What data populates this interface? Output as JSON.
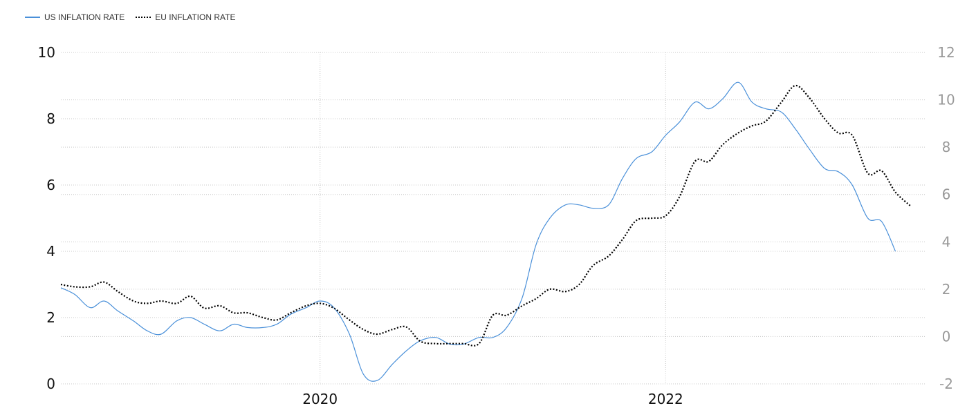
{
  "chart_data": {
    "type": "line",
    "legend": {
      "position": "top-left",
      "items": [
        "US INFLATION RATE",
        "EU INFLATION RATE"
      ]
    },
    "x_ticks": [
      2020,
      2022
    ],
    "x_range": [
      2018.5,
      2023.5
    ],
    "y_left": {
      "ticks": [
        0,
        2,
        4,
        6,
        8,
        10
      ],
      "range": [
        0,
        10
      ]
    },
    "y_right": {
      "ticks": [
        -2,
        0,
        2,
        4,
        6,
        8,
        10,
        12
      ],
      "range": [
        -2,
        12
      ]
    },
    "grid": true,
    "colors": {
      "us": "#4a90d9",
      "eu": "#000000"
    },
    "series": [
      {
        "name": "US INFLATION RATE",
        "axis": "left",
        "points": [
          [
            2018.5,
            2.9
          ],
          [
            2018.58,
            2.7
          ],
          [
            2018.67,
            2.3
          ],
          [
            2018.75,
            2.5
          ],
          [
            2018.83,
            2.2
          ],
          [
            2018.92,
            1.9
          ],
          [
            2019.0,
            1.6
          ],
          [
            2019.08,
            1.5
          ],
          [
            2019.17,
            1.9
          ],
          [
            2019.25,
            2.0
          ],
          [
            2019.33,
            1.8
          ],
          [
            2019.42,
            1.6
          ],
          [
            2019.5,
            1.8
          ],
          [
            2019.58,
            1.7
          ],
          [
            2019.67,
            1.7
          ],
          [
            2019.75,
            1.8
          ],
          [
            2019.83,
            2.1
          ],
          [
            2019.92,
            2.3
          ],
          [
            2020.0,
            2.5
          ],
          [
            2020.08,
            2.3
          ],
          [
            2020.17,
            1.5
          ],
          [
            2020.25,
            0.3
          ],
          [
            2020.33,
            0.1
          ],
          [
            2020.42,
            0.6
          ],
          [
            2020.5,
            1.0
          ],
          [
            2020.58,
            1.3
          ],
          [
            2020.67,
            1.4
          ],
          [
            2020.75,
            1.2
          ],
          [
            2020.83,
            1.2
          ],
          [
            2020.92,
            1.4
          ],
          [
            2021.0,
            1.4
          ],
          [
            2021.08,
            1.7
          ],
          [
            2021.17,
            2.6
          ],
          [
            2021.25,
            4.2
          ],
          [
            2021.33,
            5.0
          ],
          [
            2021.42,
            5.4
          ],
          [
            2021.5,
            5.4
          ],
          [
            2021.58,
            5.3
          ],
          [
            2021.67,
            5.4
          ],
          [
            2021.75,
            6.2
          ],
          [
            2021.83,
            6.8
          ],
          [
            2021.92,
            7.0
          ],
          [
            2022.0,
            7.5
          ],
          [
            2022.08,
            7.9
          ],
          [
            2022.17,
            8.5
          ],
          [
            2022.25,
            8.3
          ],
          [
            2022.33,
            8.6
          ],
          [
            2022.42,
            9.1
          ],
          [
            2022.5,
            8.5
          ],
          [
            2022.58,
            8.3
          ],
          [
            2022.67,
            8.2
          ],
          [
            2022.75,
            7.7
          ],
          [
            2022.83,
            7.1
          ],
          [
            2022.92,
            6.5
          ],
          [
            2023.0,
            6.4
          ],
          [
            2023.08,
            6.0
          ],
          [
            2023.17,
            5.0
          ],
          [
            2023.25,
            4.9
          ],
          [
            2023.33,
            4.0
          ]
        ]
      },
      {
        "name": "EU INFLATION RATE",
        "axis": "right",
        "points": [
          [
            2018.5,
            2.2
          ],
          [
            2018.58,
            2.1
          ],
          [
            2018.67,
            2.1
          ],
          [
            2018.75,
            2.3
          ],
          [
            2018.83,
            1.9
          ],
          [
            2018.92,
            1.5
          ],
          [
            2019.0,
            1.4
          ],
          [
            2019.08,
            1.5
          ],
          [
            2019.17,
            1.4
          ],
          [
            2019.25,
            1.7
          ],
          [
            2019.33,
            1.2
          ],
          [
            2019.42,
            1.3
          ],
          [
            2019.5,
            1.0
          ],
          [
            2019.58,
            1.0
          ],
          [
            2019.67,
            0.8
          ],
          [
            2019.75,
            0.7
          ],
          [
            2019.83,
            1.0
          ],
          [
            2019.92,
            1.3
          ],
          [
            2020.0,
            1.4
          ],
          [
            2020.08,
            1.2
          ],
          [
            2020.17,
            0.7
          ],
          [
            2020.25,
            0.3
          ],
          [
            2020.33,
            0.1
          ],
          [
            2020.42,
            0.3
          ],
          [
            2020.5,
            0.4
          ],
          [
            2020.58,
            -0.2
          ],
          [
            2020.67,
            -0.3
          ],
          [
            2020.75,
            -0.3
          ],
          [
            2020.83,
            -0.3
          ],
          [
            2020.92,
            -0.3
          ],
          [
            2021.0,
            0.9
          ],
          [
            2021.08,
            0.9
          ],
          [
            2021.17,
            1.3
          ],
          [
            2021.25,
            1.6
          ],
          [
            2021.33,
            2.0
          ],
          [
            2021.42,
            1.9
          ],
          [
            2021.5,
            2.2
          ],
          [
            2021.58,
            3.0
          ],
          [
            2021.67,
            3.4
          ],
          [
            2021.75,
            4.1
          ],
          [
            2021.83,
            4.9
          ],
          [
            2021.92,
            5.0
          ],
          [
            2022.0,
            5.1
          ],
          [
            2022.08,
            5.9
          ],
          [
            2022.17,
            7.4
          ],
          [
            2022.25,
            7.4
          ],
          [
            2022.33,
            8.1
          ],
          [
            2022.42,
            8.6
          ],
          [
            2022.5,
            8.9
          ],
          [
            2022.58,
            9.1
          ],
          [
            2022.67,
            9.9
          ],
          [
            2022.75,
            10.6
          ],
          [
            2022.83,
            10.1
          ],
          [
            2022.92,
            9.2
          ],
          [
            2023.0,
            8.6
          ],
          [
            2023.08,
            8.5
          ],
          [
            2023.17,
            6.9
          ],
          [
            2023.25,
            7.0
          ],
          [
            2023.33,
            6.1
          ],
          [
            2023.42,
            5.5
          ]
        ]
      }
    ]
  }
}
